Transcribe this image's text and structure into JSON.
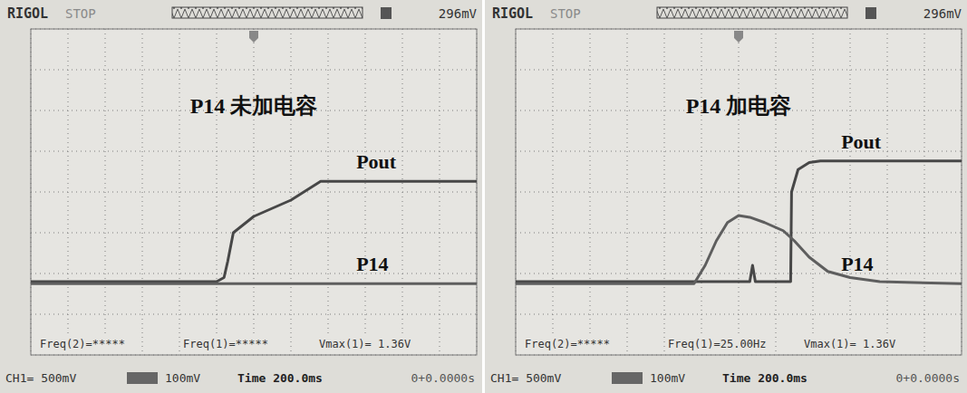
{
  "chart_data": [
    {
      "type": "line",
      "title": "P14 未加电容",
      "xlim": [
        0,
        2400
      ],
      "xticks": [
        0,
        200,
        400,
        600,
        800,
        1000,
        1200,
        1400,
        1600,
        1800,
        2000,
        2200,
        2400
      ],
      "ylim": [
        -4,
        4
      ],
      "yticks": [
        -4,
        -3,
        -2,
        -1,
        0,
        1,
        2,
        3,
        4
      ],
      "grid": true,
      "tick_labels": false,
      "header": [
        "RIGOL",
        "STOP",
        "296mV"
      ],
      "status": [
        "Freq(2)=*****",
        "Freq(1)=*****",
        "Vmax(1)= 1.36V"
      ],
      "footer": [
        "CH1= 500mV",
        "100mV",
        "Time 200.0ms",
        "0+0.0000s"
      ],
      "series": [
        {
          "name": "Pout",
          "color": "#474747",
          "x": [
            0,
            1000,
            1040,
            1060,
            1090,
            1200,
            1400,
            1560,
            2400
          ],
          "values": [
            -2.2,
            -2.2,
            -2.1,
            -1.7,
            -1.0,
            -0.6,
            -0.2,
            0.26,
            0.26
          ]
        },
        {
          "name": "P14",
          "color": "#5e5e5e",
          "x": [
            0,
            2400
          ],
          "values": [
            -2.25,
            -2.25
          ]
        }
      ]
    },
    {
      "type": "line",
      "title": "P14 加电容",
      "xlim": [
        0,
        2400
      ],
      "xticks": [
        0,
        200,
        400,
        600,
        800,
        1000,
        1200,
        1400,
        1600,
        1800,
        2000,
        2200,
        2400
      ],
      "ylim": [
        -4,
        4
      ],
      "yticks": [
        -4,
        -3,
        -2,
        -1,
        0,
        1,
        2,
        3,
        4
      ],
      "grid": true,
      "tick_labels": false,
      "header": [
        "RIGOL",
        "STOP",
        "296mV"
      ],
      "status": [
        "Freq(2)=*****",
        "Freq(1)=25.00Hz",
        "Vmax(1)= 1.36V"
      ],
      "footer": [
        "CH1= 500mV",
        "100mV",
        "Time 200.0ms",
        "0+0.0000s"
      ],
      "series": [
        {
          "name": "Pout",
          "color": "#474747",
          "x": [
            0,
            1260,
            1275,
            1290,
            1480,
            1485,
            1520,
            1580,
            1640,
            2400
          ],
          "values": [
            -2.2,
            -2.2,
            -1.8,
            -2.2,
            -2.2,
            0.0,
            0.55,
            0.72,
            0.76,
            0.76
          ]
        },
        {
          "name": "P14",
          "color": "#5e5e5e",
          "x": [
            0,
            960,
            1020,
            1080,
            1140,
            1200,
            1260,
            1340,
            1440,
            1500,
            1580,
            1680,
            1800,
            1960,
            2400
          ],
          "values": [
            -2.25,
            -2.25,
            -1.8,
            -1.2,
            -0.75,
            -0.58,
            -0.62,
            -0.75,
            -0.95,
            -1.2,
            -1.6,
            -1.95,
            -2.1,
            -2.2,
            -2.25
          ]
        }
      ]
    }
  ]
}
